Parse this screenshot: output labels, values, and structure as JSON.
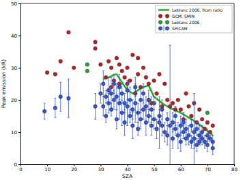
{
  "chart_data": {
    "type": "scatter",
    "xlabel": "SZA",
    "ylabel": "Peak emission (kR)",
    "xlim": [
      0,
      80
    ],
    "ylim": [
      0,
      50
    ],
    "xticks": [
      0,
      10,
      20,
      30,
      40,
      50,
      60,
      70,
      80
    ],
    "yticks": [
      0,
      10,
      20,
      30,
      40,
      50
    ],
    "legend": "upper right",
    "series": [
      {
        "name": "Leblanc 2006, from ratio",
        "type": "line",
        "color": "#22aa22",
        "line_style": "solid",
        "x": [
          31,
          33,
          35,
          36,
          38,
          40,
          42,
          44,
          46,
          48,
          50,
          53,
          56,
          60,
          63,
          66,
          69,
          72
        ],
        "values": [
          26.5,
          27,
          27.8,
          28,
          25.5,
          23,
          22,
          23,
          24,
          24.5,
          21,
          19,
          17.5,
          16,
          14.5,
          13,
          11,
          9
        ]
      },
      {
        "name": "GCM, SMIN",
        "type": "scatter",
        "color": "#b22222",
        "marker": "circle",
        "x": [
          10,
          13,
          15,
          18,
          20,
          28,
          28,
          30,
          32,
          33,
          34,
          34,
          35,
          36,
          37,
          37,
          38,
          39,
          40,
          40,
          41,
          42,
          43,
          44,
          44,
          45,
          46,
          47,
          48,
          48,
          49,
          50,
          51,
          52,
          53,
          54,
          55,
          56,
          57,
          58,
          59,
          60,
          61,
          62,
          63,
          64,
          65,
          66,
          67,
          68,
          69,
          70,
          71,
          72
        ],
        "values": [
          28.5,
          28,
          32,
          41,
          30,
          38,
          36,
          31,
          27,
          32,
          30,
          24,
          26,
          33,
          31,
          25,
          29,
          27,
          30,
          25,
          26,
          34,
          22,
          28,
          33,
          24,
          30,
          27,
          20,
          25,
          19,
          26,
          22,
          28,
          18,
          25,
          20,
          18,
          19,
          17,
          20,
          17,
          14,
          22,
          18,
          15,
          19,
          13,
          17,
          14,
          11,
          13,
          10,
          12
        ]
      },
      {
        "name": "Leblanc 2006",
        "type": "scatter",
        "color": "#2ca02c",
        "marker": "circle",
        "x": [
          25,
          25,
          70
        ],
        "values": [
          31,
          29,
          16
        ]
      },
      {
        "name": "SPICAM",
        "type": "scatter",
        "color": "#3355cc",
        "marker": "circle",
        "x": [
          9,
          13,
          15,
          18,
          28,
          30,
          31,
          31,
          32,
          32,
          33,
          33,
          34,
          34,
          35,
          35,
          36,
          36,
          37,
          37,
          38,
          38,
          39,
          39,
          40,
          40,
          41,
          41,
          42,
          42,
          43,
          43,
          44,
          44,
          45,
          45,
          46,
          46,
          47,
          47,
          48,
          48,
          49,
          49,
          50,
          50,
          51,
          52,
          52,
          53,
          53,
          54,
          55,
          55,
          56,
          57,
          57,
          58,
          58,
          59,
          60,
          60,
          61,
          61,
          62,
          62,
          63,
          64,
          64,
          65,
          65,
          66,
          66,
          67,
          67,
          68,
          68,
          69,
          70,
          70,
          71,
          72,
          72
        ],
        "values": [
          16.5,
          17.5,
          21,
          20.5,
          18,
          22,
          25,
          18,
          21,
          15,
          23,
          19,
          22,
          17,
          20,
          25,
          21,
          14,
          19,
          24,
          16,
          22,
          13,
          19,
          18,
          23,
          15,
          20,
          17,
          12,
          19,
          24,
          16,
          11,
          20,
          14,
          17,
          22,
          13,
          18,
          15,
          20,
          12,
          17,
          14,
          19,
          11,
          15,
          13,
          12,
          17,
          10,
          14,
          9,
          12,
          13,
          8,
          11,
          15,
          9,
          12,
          7,
          10,
          13,
          8,
          11,
          9,
          12,
          7,
          10,
          8,
          11,
          6,
          9,
          7,
          10,
          8,
          7,
          9,
          6,
          8,
          7,
          5
        ],
        "errors": [
          2.5,
          3,
          4.5,
          6,
          4,
          3,
          4,
          3,
          2,
          2,
          4,
          3,
          5,
          2,
          3,
          3,
          4,
          3,
          5,
          4,
          4,
          3,
          4,
          3,
          6,
          3,
          2,
          4,
          3,
          4,
          6,
          3,
          3,
          2,
          4,
          3,
          3,
          3,
          4,
          3,
          2,
          3,
          3,
          4,
          3,
          2,
          3,
          2,
          8,
          3,
          3,
          3,
          2,
          3,
          25,
          3,
          3,
          2,
          3,
          4,
          3,
          3,
          2,
          3,
          2,
          3,
          3,
          2,
          2,
          12,
          3,
          2,
          2,
          3,
          1,
          2,
          2,
          2,
          2,
          2,
          1,
          2,
          2
        ]
      }
    ]
  }
}
